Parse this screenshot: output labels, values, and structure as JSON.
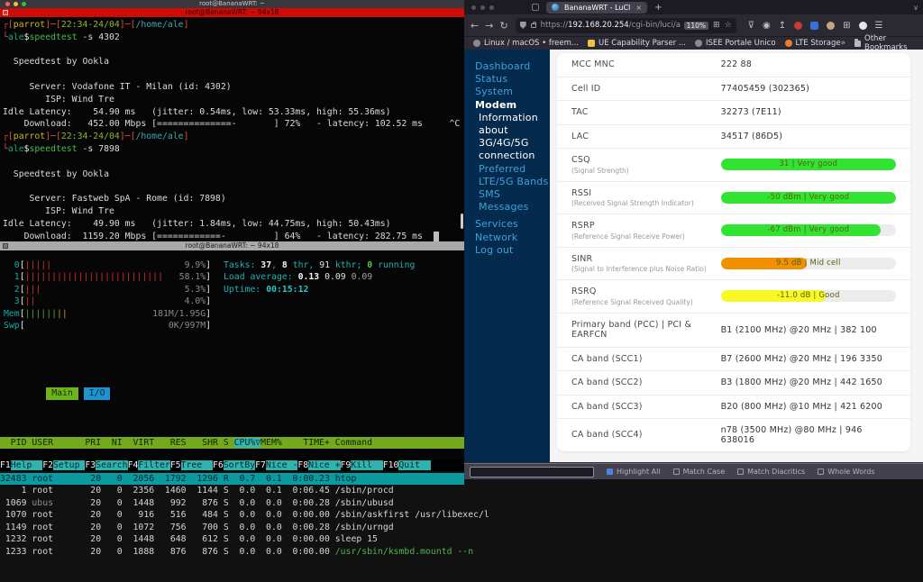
{
  "terminal": {
    "window_title": "root@BananaWRT: ~",
    "pane_title": "root@BananaWRT: ~ 94x18",
    "lines": [
      [
        [
          "┌[",
          "c-red"
        ],
        [
          "parrot",
          "c-gold"
        ],
        [
          "]─[",
          "c-red"
        ],
        [
          "22:34-24/04",
          "c-time"
        ],
        [
          "]─[",
          "c-red"
        ],
        [
          "/home/ale",
          "c-path"
        ],
        [
          "]",
          "c-red"
        ]
      ],
      [
        [
          "└",
          "c-red"
        ],
        [
          "ale",
          "c-ale"
        ],
        [
          "$",
          "c-wht"
        ],
        [
          "speedtest",
          "c-grn"
        ],
        [
          " -s 4302",
          ""
        ]
      ],
      [],
      [
        [
          "  Speedtest by Ookla",
          ""
        ]
      ],
      [],
      [
        [
          "     Server: Vodafone IT - Milan (id: 4302)",
          ""
        ]
      ],
      [
        [
          "        ISP: Wind Tre",
          ""
        ]
      ],
      [
        [
          "Idle Latency:    54.90 ms   (jitter: 0.54ms, low: 53.33ms, high: 55.36ms)",
          ""
        ]
      ],
      [
        [
          "    Download:   452.00 Mbps [==============-       ] 72%   - latency: 102.52 ms     ^C",
          ""
        ]
      ],
      [
        [
          "┌[",
          "c-red"
        ],
        [
          "parrot",
          "c-gold"
        ],
        [
          "]─[",
          "c-red"
        ],
        [
          "22:34-24/04",
          "c-time"
        ],
        [
          "]─[",
          "c-red"
        ],
        [
          "/home/ale",
          "c-path"
        ],
        [
          "]",
          "c-red"
        ]
      ],
      [
        [
          "└",
          "c-red"
        ],
        [
          "ale",
          "c-ale"
        ],
        [
          "$",
          "c-wht"
        ],
        [
          "speedtest",
          "c-grn"
        ],
        [
          " -s 7898",
          ""
        ]
      ],
      [],
      [
        [
          "  Speedtest by Ookla",
          ""
        ]
      ],
      [],
      [
        [
          "     Server: Fastweb SpA - Rome (id: 7898)",
          ""
        ]
      ],
      [
        [
          "        ISP: Wind Tre",
          ""
        ]
      ],
      [
        [
          "Idle Latency:    49.90 ms   (jitter: 1.84ms, low: 44.75ms, high: 50.43ms)",
          ""
        ]
      ],
      [
        [
          "    Download:  1159.20 Mbps [============-         ] 64%   - latency: 282.75 ms  ",
          ""
        ],
        [
          " ",
          "cursor"
        ]
      ]
    ]
  },
  "htop": {
    "meters": [
      {
        "label": "  0",
        "pipes": 5,
        "pipe_cls": "pipe-r",
        "pct": "9.9%"
      },
      {
        "label": "  1",
        "pipes": 26,
        "pipe_cls": "pipe-r",
        "pct": "58.1%"
      },
      {
        "label": "  2",
        "pipes": 3,
        "pipe_cls": "pipe-r",
        "pct": "5.3%"
      },
      {
        "label": "  3",
        "pipes": 2,
        "pipe_cls": "pipe-r",
        "pct": "4.0%"
      },
      {
        "label": "Mem",
        "pipes": 8,
        "pipe_cls": "pipe-g",
        "pipe_tail": 2,
        "pipe_tail_cls": "pipe-y",
        "pct": "181M/1.95G"
      },
      {
        "label": "Swp",
        "pipes": 0,
        "pipe_cls": "pipe-g",
        "pct": "0K/997M"
      }
    ],
    "info": [
      [
        [
          "Tasks: ",
          "h-cyan"
        ],
        [
          "37",
          "h-b"
        ],
        [
          ", ",
          "h-cyan"
        ],
        [
          "8",
          "h-b"
        ],
        [
          " thr, ",
          "h-cyan"
        ],
        [
          "91",
          "h-n"
        ],
        [
          " kthr; ",
          "h-cyan"
        ],
        [
          "0",
          "h-grnb"
        ],
        [
          " running",
          "h-cyan"
        ]
      ],
      [
        [
          "Load average: ",
          "h-cyan"
        ],
        [
          "0.13 ",
          "h-b"
        ],
        [
          "0.09 ",
          "h-n"
        ],
        [
          "0.09",
          "h-dim"
        ]
      ],
      [
        [
          "Uptime: ",
          "h-cyan"
        ],
        [
          "00:15:12",
          "h-cyanb"
        ]
      ]
    ],
    "tabs": {
      "main": "Main",
      "io": "I/O"
    },
    "header": [
      "PID",
      "USER",
      "PRI",
      "NI",
      "VIRT",
      "RES",
      "SHR",
      "S",
      "CPU%",
      "MEM%",
      "TIME+",
      "Command"
    ],
    "sort_indicator": "▽",
    "rows": [
      {
        "cells": [
          "32483",
          "root",
          "20",
          "0",
          "2056",
          "1792",
          "1296",
          "R",
          "0.7",
          "0.1",
          "0:00.23",
          "htop"
        ],
        "sel": true
      },
      {
        "cells": [
          "1",
          "root",
          "20",
          "0",
          "2356",
          "1460",
          "1144",
          "S",
          "0.0",
          "0.1",
          "0:06.45",
          "/sbin/procd"
        ]
      },
      {
        "cells": [
          "1069",
          "ubus",
          "20",
          "0",
          "1448",
          "992",
          "876",
          "S",
          "0.0",
          "0.0",
          "0:00.28",
          "/sbin/ubusd"
        ],
        "user_dim": true
      },
      {
        "cells": [
          "1070",
          "root",
          "20",
          "0",
          "916",
          "516",
          "484",
          "S",
          "0.0",
          "0.0",
          "0:00.00",
          "/sbin/askfirst /usr/libexec/l"
        ]
      },
      {
        "cells": [
          "1149",
          "root",
          "20",
          "0",
          "1072",
          "756",
          "700",
          "S",
          "0.0",
          "0.0",
          "0:00.28",
          "/sbin/urngd"
        ]
      },
      {
        "cells": [
          "1232",
          "root",
          "20",
          "0",
          "1448",
          "648",
          "612",
          "S",
          "0.0",
          "0.0",
          "0:00.00",
          "sleep 15"
        ]
      },
      {
        "cells": [
          "1233",
          "root",
          "20",
          "0",
          "1888",
          "876",
          "876",
          "S",
          "0.0",
          "0.0",
          "0:00.00",
          "/usr/sbin/ksmbd.mountd --n"
        ],
        "cmd_grn": true
      }
    ],
    "fnkeys": [
      {
        "key": "F1",
        "label": "Help"
      },
      {
        "key": "F2",
        "label": "Setup"
      },
      {
        "key": "F3",
        "label": "Search"
      },
      {
        "key": "F4",
        "label": "Filter"
      },
      {
        "key": "F5",
        "label": "Tree"
      },
      {
        "key": "F6",
        "label": "SortBy"
      },
      {
        "key": "F7",
        "label": "Nice -"
      },
      {
        "key": "F8",
        "label": "Nice +"
      },
      {
        "key": "F9",
        "label": "Kill"
      },
      {
        "key": "F10",
        "label": "Quit"
      }
    ]
  },
  "browser": {
    "tab": {
      "title": "BananaWRT - LuCI",
      "close": "×",
      "new_tab": "+",
      "chevron": "∨"
    },
    "nav": {
      "back": "←",
      "forward": "→",
      "reload": "↻"
    },
    "url": {
      "scheme": "https://",
      "host": "192.168.20.254",
      "path": "/cgi-bin/luci/adm"
    },
    "zoom_badge": "110%",
    "url_icons": [
      {
        "name": "containers-icon",
        "glyph": "⊞"
      },
      {
        "name": "bookmark-star-icon",
        "glyph": "☆"
      }
    ],
    "action_icons": [
      {
        "name": "pocket-icon",
        "type": "glyph",
        "glyph": "⊽"
      },
      {
        "name": "account-icon",
        "type": "glyph",
        "glyph": "◉"
      },
      {
        "name": "import-icon",
        "type": "glyph",
        "glyph": "↥"
      },
      {
        "name": "adblock-icon",
        "type": "dot",
        "color": "#c93a32"
      },
      {
        "name": "password-manager-icon",
        "type": "square",
        "color": "#3a6fd8"
      },
      {
        "name": "tampermonkey-icon",
        "type": "dot",
        "color": "#c8a284"
      },
      {
        "name": "extensions-grid-icon",
        "type": "glyph",
        "glyph": "⊞"
      },
      {
        "name": "video-extension-icon",
        "type": "dot",
        "color": "#e4e4ea"
      },
      {
        "name": "menu-icon",
        "type": "glyph",
        "glyph": "☰"
      }
    ],
    "bookmarks": [
      {
        "label": "Linux / macOS • freem...",
        "icon": "globe",
        "color": "#8a8a92"
      },
      {
        "label": "UE Capability Parser ...",
        "icon": "square",
        "color": "#e8c547"
      },
      {
        "label": "ISEE Portale Unico",
        "icon": "globe",
        "color": "#8a8a92"
      },
      {
        "label": "LTE Storage",
        "icon": "dot",
        "color": "#e87d2f"
      }
    ],
    "bookmarks_overflow": "»",
    "other_bookmarks": "Other Bookmarks",
    "findbar": {
      "items": [
        "Highlight All",
        "Match Case",
        "Match Diacritics",
        "Whole Words"
      ],
      "checked_index": 0
    }
  },
  "luci": {
    "sidebar": [
      {
        "label": "Dashboard",
        "cls": "nav-blue"
      },
      {
        "label": "Status",
        "cls": "nav-blue"
      },
      {
        "label": "System",
        "cls": "nav-blue"
      },
      {
        "label": "Modem",
        "cls": "nav-white nav-bold"
      },
      {
        "label": "Information about 3G/4G/5G connection",
        "cls": "nav-white nav-sub"
      },
      {
        "label": "Preferred LTE/5G Bands",
        "cls": "nav-blue nav-sub"
      },
      {
        "label": "SMS Messages",
        "cls": "nav-blue nav-sub"
      },
      {
        "label": "Services",
        "cls": "nav-blue nav-gap"
      },
      {
        "label": "Network",
        "cls": "nav-blue"
      },
      {
        "label": "Log out",
        "cls": "nav-blue"
      }
    ],
    "colors": {
      "green": "#31e431",
      "orange": "#f19100",
      "yellow": "#f8f826",
      "track": "#ececec"
    },
    "rows": [
      {
        "label": "MCC MNC",
        "value": "222 88"
      },
      {
        "label": "Cell ID",
        "value": "77405459 (302365)"
      },
      {
        "label": "TAC",
        "value": "32273 (7E11)"
      },
      {
        "label": "LAC",
        "value": "34517 (86D5)"
      },
      {
        "label": "CSQ",
        "sub": "(Signal Strength)",
        "bar": {
          "pct": 100,
          "color": "green",
          "text": "31 | Very good"
        }
      },
      {
        "label": "RSSI",
        "sub": "(Received Signal Strength Indicator)",
        "bar": {
          "pct": 100,
          "color": "green",
          "text": "-50 dBm | Very good"
        }
      },
      {
        "label": "RSRP",
        "sub": "(Reference Signal Receive Power)",
        "bar": {
          "pct": 91,
          "color": "green",
          "text": "-67 dBm | Very good"
        }
      },
      {
        "label": "SINR",
        "sub": "(Signal to Interference plus Noise Ratio)",
        "bar": {
          "pct": 49,
          "color": "orange",
          "text": "9.5 dB | Mid cell"
        }
      },
      {
        "label": "RSRQ",
        "sub": "(Reference Signal Received Quality)",
        "bar": {
          "pct": 60,
          "color": "yellow",
          "text": "-11.0 dB | Good"
        }
      },
      {
        "label": "Primary band (PCC) | PCI & EARFCN",
        "value": "B1 (2100 MHz) @20 MHz | 382 100"
      },
      {
        "label": "CA band (SCC1)",
        "value": "B7 (2600 MHz) @20 MHz | 196 3350"
      },
      {
        "label": "CA band (SCC2)",
        "value": "B3 (1800 MHz) @20 MHz | 442 1650"
      },
      {
        "label": "CA band (SCC3)",
        "value": "B20 (800 MHz) @10 MHz | 421 6200"
      },
      {
        "label": "CA band (SCC4)",
        "value": "n78 (3500 MHz) @80 MHz | 946 638016"
      }
    ]
  }
}
